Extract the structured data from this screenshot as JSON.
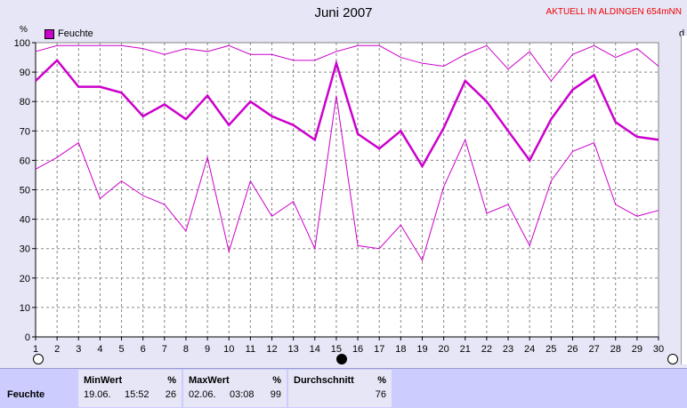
{
  "header": {
    "title": "Juni 2007",
    "live_label": "AKTUELL IN ALDINGEN 654mNN"
  },
  "chart_data": {
    "type": "line",
    "x": [
      1,
      2,
      3,
      4,
      5,
      6,
      7,
      8,
      9,
      10,
      11,
      12,
      13,
      14,
      15,
      16,
      17,
      18,
      19,
      20,
      21,
      22,
      23,
      24,
      25,
      26,
      27,
      28,
      29,
      30
    ],
    "ylim": [
      0,
      100
    ],
    "yticks": [
      0,
      10,
      20,
      30,
      40,
      50,
      60,
      70,
      80,
      90,
      100
    ],
    "ylabel": "%",
    "right_label": "d",
    "legend": [
      "Feuchte"
    ],
    "grid": true,
    "series": [
      {
        "name": "Feuchte",
        "role": "average",
        "values": [
          87,
          94,
          85,
          85,
          83,
          75,
          79,
          74,
          82,
          72,
          80,
          75,
          72,
          67,
          93,
          69,
          64,
          70,
          58,
          71,
          87,
          80,
          70,
          60,
          74,
          84,
          89,
          73,
          68,
          67
        ]
      },
      {
        "role": "maximum",
        "values": [
          97,
          99,
          99,
          99,
          99,
          98,
          96,
          98,
          97,
          99,
          96,
          96,
          94,
          94,
          97,
          99,
          99,
          95,
          93,
          92,
          96,
          99,
          91,
          97,
          87,
          96,
          99,
          95,
          98,
          92
        ]
      },
      {
        "role": "minimum",
        "values": [
          57,
          61,
          66,
          47,
          53,
          48,
          45,
          36,
          61,
          29,
          53,
          41,
          46,
          30,
          82,
          31,
          30,
          38,
          26,
          51,
          67,
          42,
          45,
          31,
          53,
          63,
          66,
          45,
          41,
          43
        ]
      }
    ],
    "color": "#cc00cc"
  },
  "stats": {
    "row_label": "Feuchte",
    "min": {
      "header": "MinWert",
      "unit": "%",
      "date": "19.06.",
      "time": "15:52",
      "value": "26"
    },
    "max": {
      "header": "MaxWert",
      "unit": "%",
      "date": "02.06.",
      "time": "03:08",
      "value": "99"
    },
    "avg": {
      "header": "Durchschnitt",
      "unit": "%",
      "value": "76"
    }
  }
}
